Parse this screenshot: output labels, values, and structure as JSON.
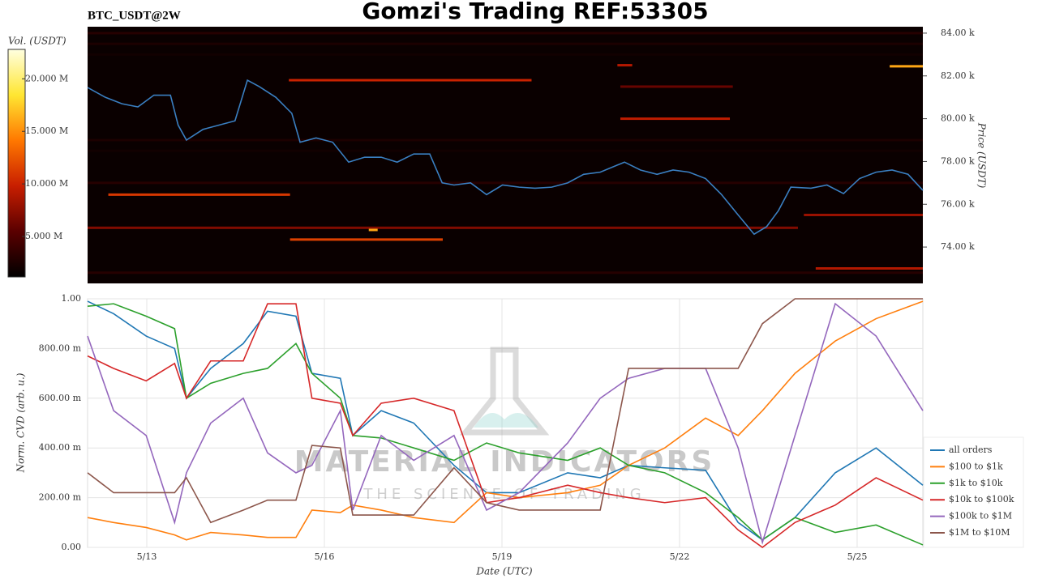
{
  "chart_data": [
    {
      "type": "heatmap",
      "title": "Gomzi's Trading REF:53305",
      "subtitle": "BTC_USDT@2W",
      "ylabel": "Price (USDT)",
      "colorbar_label": "Vol. (USDT)",
      "xlim": [
        12.0,
        26.11
      ],
      "ylim": [
        72300,
        84300
      ],
      "yticks": [
        {
          "value": 74000,
          "label": "74.00 k"
        },
        {
          "value": 76000,
          "label": "76.00 k"
        },
        {
          "value": 78000,
          "label": "78.00 k"
        },
        {
          "value": 80000,
          "label": "80.00 k"
        },
        {
          "value": 82000,
          "label": "82.00 k"
        },
        {
          "value": 84000,
          "label": "84.00 k"
        }
      ],
      "zlim": [
        1150000,
        22800000
      ],
      "zticks": [
        {
          "value": 5000000,
          "label": "5.000 M"
        },
        {
          "value": 10000000,
          "label": "10.000 M"
        },
        {
          "value": 15000000,
          "label": "15.000 M"
        },
        {
          "value": 20000000,
          "label": "20.000 M"
        }
      ],
      "colorscale": [
        "#000000",
        "#5a0000",
        "#c81e00",
        "#ff7800",
        "#ffe632",
        "#ffffe0"
      ],
      "price_color": "#3a7fc1",
      "x": [
        12.0,
        12.3,
        12.58,
        12.85,
        13.12,
        13.4,
        13.53,
        13.67,
        13.95,
        14.22,
        14.49,
        14.7,
        14.9,
        15.18,
        15.45,
        15.59,
        15.86,
        16.14,
        16.41,
        16.68,
        16.96,
        17.23,
        17.51,
        17.78,
        17.99,
        18.19,
        18.47,
        18.74,
        19.01,
        19.29,
        19.56,
        19.84,
        20.11,
        20.38,
        20.66,
        21.07,
        21.34,
        21.62,
        21.89,
        22.16,
        22.44,
        22.71,
        22.99,
        23.26,
        23.47,
        23.67,
        23.88,
        24.22,
        24.49,
        24.77,
        25.04,
        25.32,
        25.59,
        25.86,
        26.11
      ],
      "values": [
        81460,
        81000,
        80700,
        80550,
        81100,
        81100,
        79700,
        79000,
        79500,
        79700,
        79900,
        81800,
        81500,
        81000,
        80250,
        78900,
        79100,
        78900,
        77970,
        78200,
        78200,
        77970,
        78350,
        78350,
        77000,
        76900,
        77000,
        76450,
        76900,
        76800,
        76750,
        76800,
        77000,
        77400,
        77500,
        77970,
        77600,
        77400,
        77600,
        77500,
        77200,
        76450,
        75500,
        74600,
        74950,
        75700,
        76800,
        76750,
        76900,
        76500,
        77200,
        77500,
        77600,
        77400,
        76650
      ],
      "levels": [
        {
          "price": 84000,
          "start": 12.0,
          "end": 26.11,
          "volume": 3000000
        },
        {
          "price": 83500,
          "start": 12.0,
          "end": 26.11,
          "volume": 2500000
        },
        {
          "price": 83000,
          "start": 12.0,
          "end": 26.11,
          "volume": 2000000
        },
        {
          "price": 82500,
          "start": 20.95,
          "end": 21.2,
          "volume": 9000000
        },
        {
          "price": 82450,
          "start": 25.55,
          "end": 26.11,
          "volume": 16000000
        },
        {
          "price": 81800,
          "start": 15.4,
          "end": 19.5,
          "volume": 10000000
        },
        {
          "price": 81500,
          "start": 21.0,
          "end": 22.9,
          "volume": 6000000
        },
        {
          "price": 80000,
          "start": 21.0,
          "end": 22.85,
          "volume": 9500000
        },
        {
          "price": 79000,
          "start": 12.0,
          "end": 26.11,
          "volume": 2500000
        },
        {
          "price": 78500,
          "start": 12.0,
          "end": 26.11,
          "volume": 2000000
        },
        {
          "price": 77000,
          "start": 12.0,
          "end": 26.11,
          "volume": 3000000
        },
        {
          "price": 76450,
          "start": 12.35,
          "end": 15.42,
          "volume": 11000000
        },
        {
          "price": 75500,
          "start": 24.1,
          "end": 26.11,
          "volume": 8000000
        },
        {
          "price": 74900,
          "start": 12.0,
          "end": 24.0,
          "volume": 7000000
        },
        {
          "price": 74800,
          "start": 16.75,
          "end": 16.9,
          "volume": 16000000
        },
        {
          "price": 74350,
          "start": 15.42,
          "end": 18.0,
          "volume": 11500000
        },
        {
          "price": 73000,
          "start": 24.3,
          "end": 26.11,
          "volume": 9000000
        },
        {
          "price": 72800,
          "start": 12.0,
          "end": 26.11,
          "volume": 3000000
        }
      ]
    },
    {
      "type": "line",
      "xlabel": "Date (UTC)",
      "ylabel": "Norm. CVD (arb. u.)",
      "watermark": {
        "title": "MATERIAL INDICATORS",
        "subtitle": "THE SCIENCE OF TRADING"
      },
      "grid": true,
      "legend": "right",
      "xlim": [
        12.0,
        26.11
      ],
      "ylim": [
        0,
        1
      ],
      "xticks": [
        {
          "value": 13,
          "label": "5/13"
        },
        {
          "value": 16,
          "label": "5/16"
        },
        {
          "value": 19,
          "label": "5/19"
        },
        {
          "value": 22,
          "label": "5/22"
        },
        {
          "value": 25,
          "label": "5/25"
        }
      ],
      "yticks": [
        {
          "value": 0,
          "label": "0.00"
        },
        {
          "value": 0.2,
          "label": "200.00 m"
        },
        {
          "value": 0.4,
          "label": "400.00 m"
        },
        {
          "value": 0.6,
          "label": "600.00 m"
        },
        {
          "value": 0.8,
          "label": "800.00 m"
        },
        {
          "value": 1,
          "label": "1.00"
        }
      ],
      "x": [
        12.0,
        12.44,
        12.99,
        13.47,
        13.67,
        14.08,
        14.63,
        15.04,
        15.52,
        15.79,
        16.27,
        16.48,
        16.96,
        17.51,
        18.19,
        18.74,
        19.29,
        20.11,
        20.66,
        21.14,
        21.75,
        22.44,
        22.99,
        23.4,
        23.95,
        24.63,
        25.32,
        26.11
      ],
      "series": [
        {
          "name": "all orders",
          "color": "#1f77b4",
          "values": [
            0.99,
            0.94,
            0.85,
            0.8,
            0.6,
            0.72,
            0.82,
            0.95,
            0.93,
            0.7,
            0.68,
            0.45,
            0.55,
            0.5,
            0.33,
            0.22,
            0.22,
            0.3,
            0.28,
            0.33,
            0.32,
            0.31,
            0.1,
            0.03,
            0.12,
            0.3,
            0.4,
            0.25
          ]
        },
        {
          "name": "$100 to $1k",
          "color": "#ff7f0e",
          "values": [
            0.12,
            0.1,
            0.08,
            0.05,
            0.03,
            0.06,
            0.05,
            0.04,
            0.04,
            0.15,
            0.14,
            0.17,
            0.15,
            0.12,
            0.1,
            0.22,
            0.2,
            0.22,
            0.25,
            0.33,
            0.4,
            0.52,
            0.45,
            0.55,
            0.7,
            0.83,
            0.92,
            0.99
          ]
        },
        {
          "name": "$1k to $10k",
          "color": "#2ca02c",
          "values": [
            0.97,
            0.98,
            0.93,
            0.88,
            0.6,
            0.66,
            0.7,
            0.72,
            0.82,
            0.7,
            0.6,
            0.45,
            0.44,
            0.4,
            0.35,
            0.42,
            0.38,
            0.35,
            0.4,
            0.33,
            0.3,
            0.22,
            0.12,
            0.03,
            0.12,
            0.06,
            0.09,
            0.01
          ]
        },
        {
          "name": "$10k to $100k",
          "color": "#d62728",
          "values": [
            0.77,
            0.72,
            0.67,
            0.74,
            0.6,
            0.75,
            0.75,
            0.98,
            0.98,
            0.6,
            0.58,
            0.45,
            0.58,
            0.6,
            0.55,
            0.18,
            0.2,
            0.25,
            0.22,
            0.2,
            0.18,
            0.2,
            0.07,
            0.0,
            0.1,
            0.17,
            0.28,
            0.19
          ]
        },
        {
          "name": "$100k to $1M",
          "color": "#9467bd",
          "values": [
            0.85,
            0.55,
            0.45,
            0.1,
            0.3,
            0.5,
            0.6,
            0.38,
            0.3,
            0.33,
            0.55,
            0.15,
            0.45,
            0.35,
            0.45,
            0.15,
            0.22,
            0.42,
            0.6,
            0.68,
            0.72,
            0.72,
            0.4,
            0.02,
            0.45,
            0.98,
            0.85,
            0.55
          ]
        },
        {
          "name": "$1M to $10M",
          "color": "#8c564b",
          "values": [
            0.3,
            0.22,
            0.22,
            0.22,
            0.28,
            0.1,
            0.15,
            0.19,
            0.19,
            0.41,
            0.4,
            0.13,
            0.13,
            0.13,
            0.32,
            0.18,
            0.15,
            0.15,
            0.15,
            0.72,
            0.72,
            0.72,
            0.72,
            0.9,
            1.0,
            1.0,
            1.0,
            1.0
          ]
        }
      ]
    }
  ]
}
